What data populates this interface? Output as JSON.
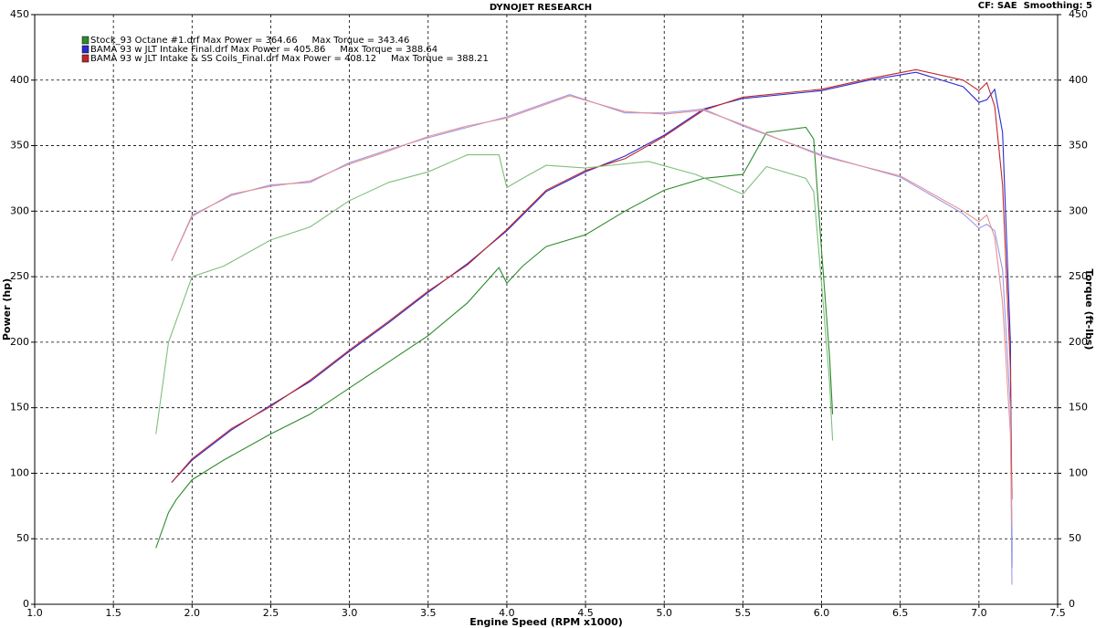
{
  "chart_data": {
    "type": "line",
    "title": "DYNOJET RESEARCH",
    "subtitle": "CF: SAE  Smoothing: 5",
    "x_label": "Engine Speed (RPM x1000)",
    "y_label": "Power (hp)",
    "y2_label": "Torque (ft-lbs)",
    "xlim": [
      1,
      7.5
    ],
    "xticks": [
      {
        "value": 1,
        "label": "1.0"
      },
      1.5,
      {
        "value": 2,
        "label": "2.0"
      },
      2.5,
      {
        "value": 3,
        "label": "3.0"
      },
      3.5,
      {
        "value": 4,
        "label": "4.0"
      },
      4.5,
      {
        "value": 5,
        "label": "5.0"
      },
      5.5,
      {
        "value": 6,
        "label": "6.0"
      },
      6.5,
      {
        "value": 7,
        "label": "7.0"
      },
      7.5
    ],
    "ylim": [
      0,
      450
    ],
    "yticks": [
      0,
      50,
      100,
      150,
      200,
      250,
      300,
      350,
      400,
      450
    ],
    "y2lim": [
      0,
      450
    ],
    "y2ticks": [
      0,
      50,
      100,
      150,
      200,
      250,
      300,
      350,
      400,
      450
    ],
    "grid": true,
    "legend": "top-left",
    "series": [
      {
        "name": "Stock_93 Octane #1.drf Max Power = 364.66     Max Torque = 343.46",
        "color": "#2e8b2e",
        "x": [
          1.77,
          1.85,
          1.9,
          2.0,
          2.2,
          2.5,
          2.75,
          3.0,
          3.25,
          3.5,
          3.75,
          3.95,
          4.0,
          4.1,
          4.25,
          4.5,
          4.75,
          5.0,
          5.25,
          5.5,
          5.65,
          5.9,
          5.95,
          6.0,
          6.05,
          6.07
        ],
        "values": [
          43,
          70,
          80,
          95,
          110,
          130,
          145,
          165,
          185,
          205,
          230,
          257,
          245,
          258,
          273,
          282,
          300,
          316,
          325,
          328,
          360,
          364,
          355,
          270,
          190,
          145
        ]
      },
      {
        "name": "BAMA 93 w JLT Intake Final.drf Max Power = 405.86     Max Torque = 388.64",
        "color": "#2b2bd0",
        "x": [
          1.87,
          2.0,
          2.25,
          2.5,
          2.75,
          3.0,
          3.25,
          3.5,
          3.75,
          4.0,
          4.25,
          4.5,
          4.75,
          5.0,
          5.25,
          5.5,
          6.0,
          6.3,
          6.6,
          6.9,
          7.0,
          7.05,
          7.1,
          7.15,
          7.2,
          7.21
        ],
        "values": [
          93,
          110,
          133,
          152,
          170,
          193,
          215,
          238,
          260,
          285,
          315,
          330,
          342,
          358,
          378,
          386,
          392,
          400,
          406,
          395,
          383,
          385,
          393,
          360,
          200,
          28
        ]
      },
      {
        "name": "BAMA 93 w JLT Intake & SS Coils_Final.drf Max Power = 408.12     Max Torque = 388.21",
        "color": "#c02828",
        "x": [
          1.87,
          2.0,
          2.25,
          2.5,
          2.75,
          3.0,
          3.25,
          3.5,
          3.75,
          4.0,
          4.25,
          4.5,
          4.75,
          5.0,
          5.25,
          5.5,
          6.0,
          6.3,
          6.6,
          6.9,
          7.0,
          7.05,
          7.1,
          7.15,
          7.2,
          7.21
        ],
        "values": [
          93,
          111,
          134,
          151,
          171,
          194,
          216,
          239,
          259,
          286,
          316,
          331,
          340,
          357,
          377,
          387,
          393,
          401,
          408,
          400,
          392,
          398,
          380,
          320,
          180,
          80
        ]
      },
      {
        "color": "#7fbf7f",
        "axis": "y2",
        "x": [
          1.77,
          1.85,
          2.0,
          2.2,
          2.5,
          2.75,
          3.0,
          3.25,
          3.5,
          3.75,
          3.95,
          4.0,
          4.1,
          4.25,
          4.5,
          4.9,
          5.2,
          5.5,
          5.65,
          5.9,
          5.95,
          6.0,
          6.05,
          6.07
        ],
        "values": [
          130,
          200,
          250,
          258,
          278,
          288,
          308,
          322,
          330,
          343,
          343,
          318,
          325,
          335,
          333,
          338,
          328,
          313,
          334,
          325,
          315,
          245,
          170,
          125
        ]
      },
      {
        "color": "#9a9ae8",
        "axis": "y2",
        "x": [
          1.87,
          2.0,
          2.25,
          2.5,
          2.75,
          3.0,
          3.25,
          3.5,
          3.75,
          4.0,
          4.4,
          4.75,
          5.0,
          5.25,
          5.5,
          6.0,
          6.5,
          6.9,
          7.0,
          7.05,
          7.1,
          7.15,
          7.2,
          7.21
        ],
        "values": [
          262,
          297,
          312,
          320,
          322,
          337,
          347,
          356,
          364,
          372,
          389,
          375,
          375,
          378,
          365,
          343,
          326,
          298,
          287,
          290,
          285,
          255,
          150,
          15
        ]
      },
      {
        "color": "#e89090",
        "axis": "y2",
        "x": [
          1.87,
          2.0,
          2.25,
          2.5,
          2.75,
          3.0,
          3.25,
          3.5,
          3.75,
          4.0,
          4.4,
          4.75,
          5.0,
          5.25,
          5.5,
          6.0,
          6.5,
          6.9,
          7.0,
          7.05,
          7.1,
          7.15,
          7.2,
          7.21
        ],
        "values": [
          262,
          296,
          313,
          319,
          323,
          336,
          346,
          357,
          365,
          371,
          388,
          376,
          374,
          377,
          366,
          342,
          327,
          300,
          292,
          297,
          280,
          230,
          130,
          60
        ]
      }
    ]
  }
}
